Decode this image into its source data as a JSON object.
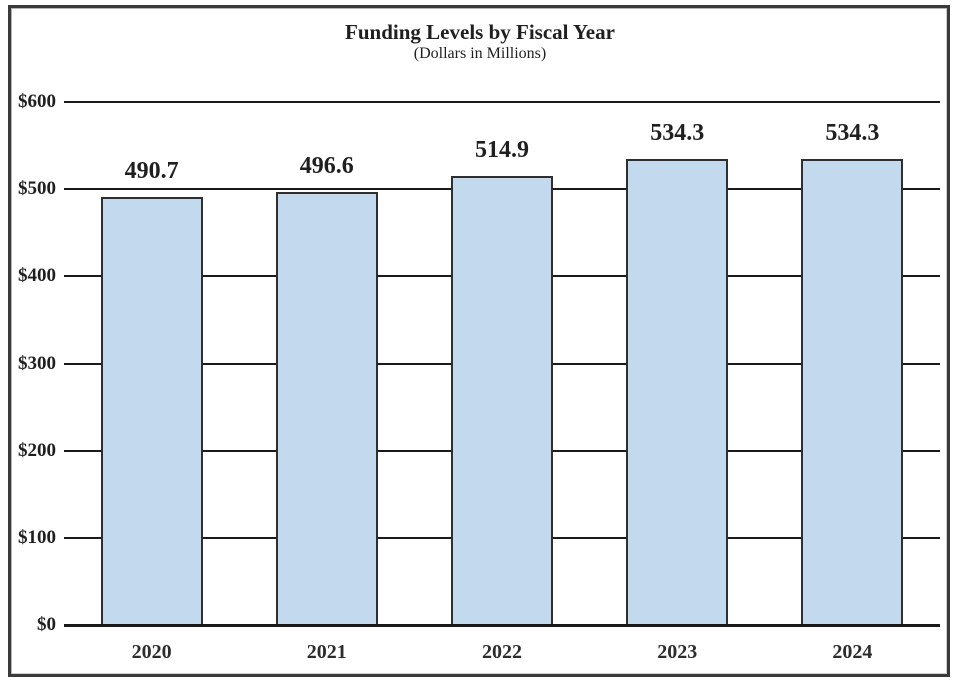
{
  "chart_data": {
    "type": "bar",
    "title": "Funding Levels by Fiscal Year",
    "subtitle": "(Dollars in Millions)",
    "categories": [
      "2020",
      "2021",
      "2022",
      "2023",
      "2024"
    ],
    "values": [
      490.7,
      496.6,
      514.9,
      534.3,
      534.3
    ],
    "value_labels": [
      "490.7",
      "496.6",
      "514.9",
      "534.3",
      "534.3"
    ],
    "y_ticks": [
      {
        "value": 600,
        "label": "$600"
      },
      {
        "value": 500,
        "label": "$500"
      },
      {
        "value": 400,
        "label": "$400"
      },
      {
        "value": 300,
        "label": "$300"
      },
      {
        "value": 200,
        "label": "$200"
      },
      {
        "value": 100,
        "label": "$100"
      },
      {
        "value": 0,
        "label": "$0"
      }
    ],
    "ylim": [
      0,
      600
    ],
    "xlabel": "",
    "ylabel": "",
    "grid": "horizontal",
    "legend": "none",
    "colors": {
      "bar_fill": "#c3d9ee",
      "bar_border": "#2f2f2f",
      "gridline": "#1a1a1a",
      "text": "#1f1f1f",
      "frame_border": "#3a3a3a"
    }
  }
}
